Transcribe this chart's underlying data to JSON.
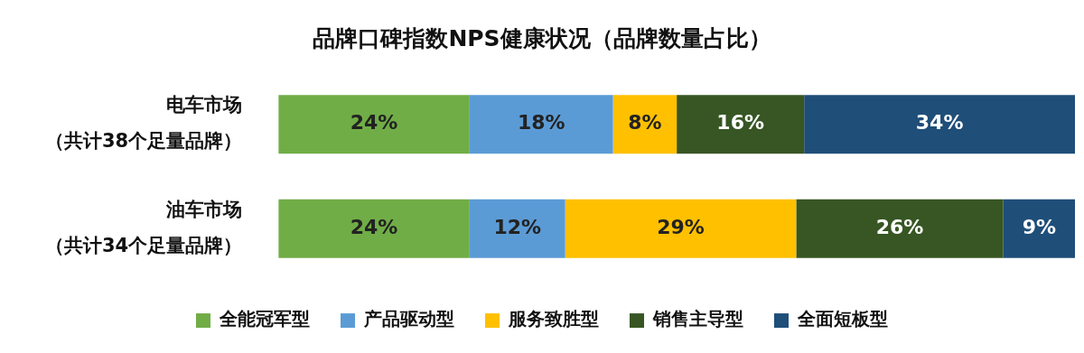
{
  "chart_data": {
    "type": "bar",
    "title": "品牌口碑指数NPS健康状况（品牌数量占比）",
    "orientation": "horizontal",
    "stacked": true,
    "categories": [
      "电车市场（共计38个足量品牌）",
      "油车市场（共计34个足量品牌）"
    ],
    "series": [
      {
        "name": "全能冠军型",
        "color": "#70ad47",
        "values": [
          24,
          24
        ],
        "value_labels": [
          "24%",
          "24%"
        ]
      },
      {
        "name": "产品驱动型",
        "color": "#5b9bd5",
        "values": [
          18,
          12
        ],
        "value_labels": [
          "18%",
          "12%"
        ]
      },
      {
        "name": "服务致胜型",
        "color": "#ffc000",
        "values": [
          8,
          29
        ],
        "value_labels": [
          "8%",
          "29%"
        ]
      },
      {
        "name": "销售主导型",
        "color": "#375623",
        "values": [
          16,
          26
        ],
        "value_labels": [
          "16%",
          "26%"
        ]
      },
      {
        "name": "全面短板型",
        "color": "#1f4e79",
        "values": [
          34,
          9
        ],
        "value_labels": [
          "34%",
          "9%"
        ]
      }
    ],
    "tick_labels": "y",
    "legend": "bottom"
  }
}
